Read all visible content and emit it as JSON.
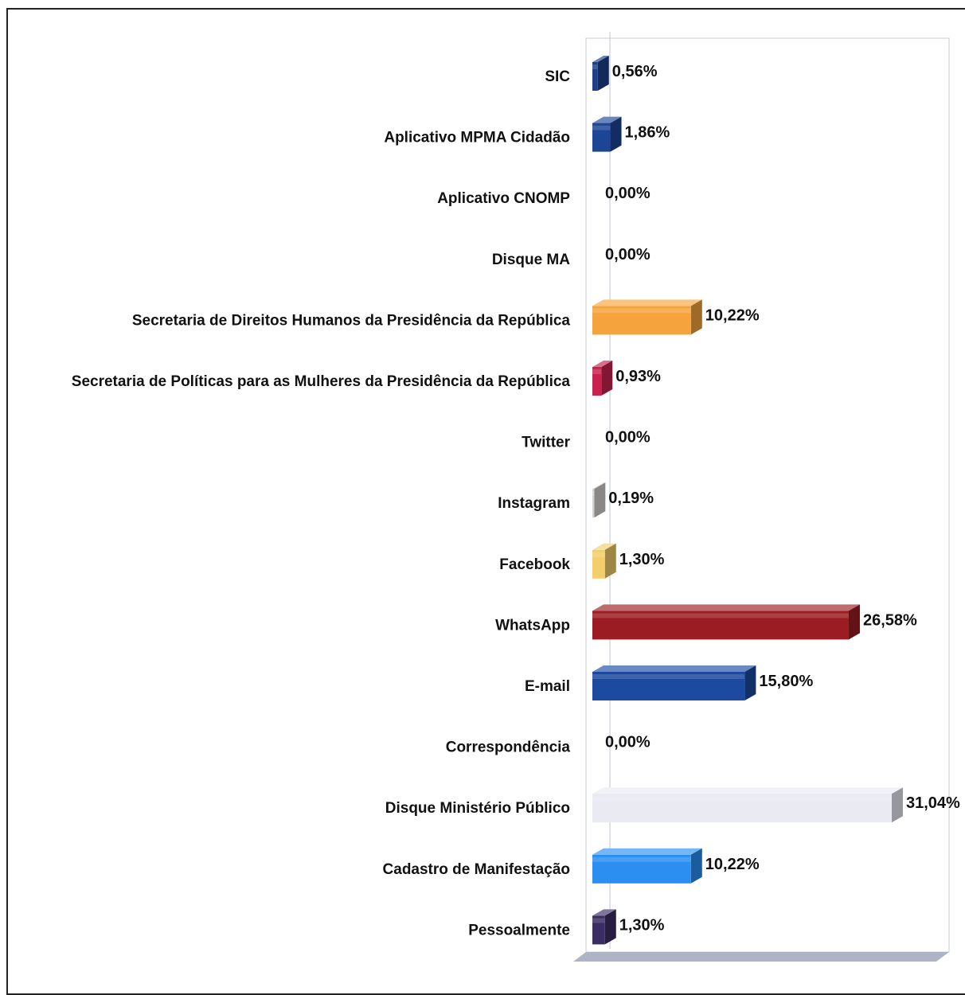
{
  "chart_data": {
    "type": "bar",
    "orientation": "horizontal",
    "style": "3d",
    "grid": false,
    "legend": "none",
    "xlim": [
      0,
      31.04
    ],
    "categories": [
      "SIC",
      "Aplicativo MPMA Cidadão",
      "Aplicativo CNOMP",
      "Disque MA",
      "Secretaria de Direitos Humanos da Presidência da República",
      "Secretaria de Políticas para as Mulheres da Presidência da República",
      "Twitter",
      "Instagram",
      "Facebook",
      "WhatsApp",
      "E-mail",
      "Correspondência",
      "Disque Ministério Público",
      "Cadastro de Manifestação",
      "Pessoalmente"
    ],
    "values": [
      0.56,
      1.86,
      0,
      0,
      10.22,
      0.93,
      0,
      0.19,
      1.3,
      26.58,
      15.8,
      0,
      31.04,
      10.22,
      1.3
    ],
    "data_labels": [
      "0,56%",
      "1,86%",
      "0,00%",
      "0,00%",
      "10,22%",
      "0,93%",
      "0,00%",
      "0,19%",
      "1,30%",
      "26,58%",
      "15,80%",
      "0,00%",
      "31,04%",
      "10,22%",
      "1,30%"
    ],
    "colors": [
      "#1d3f8a",
      "#1d4596",
      "#1d4596",
      "#1d4596",
      "#f5a33c",
      "#c8234f",
      "#9a9a9a",
      "#d3d1cf",
      "#f2cf6a",
      "#9b1c22",
      "#1c4aa0",
      "#1c4aa0",
      "#e9eaf2",
      "#2a8ff0",
      "#3a2d63"
    ]
  }
}
